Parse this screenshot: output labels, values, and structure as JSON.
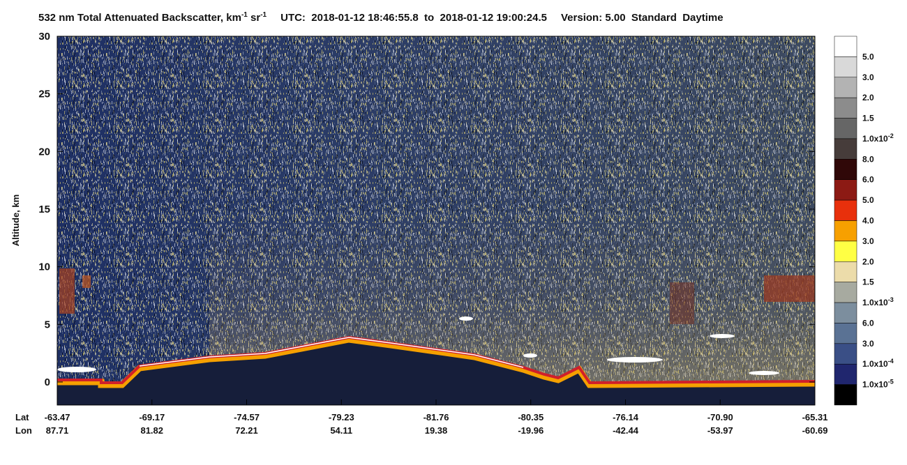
{
  "chart_data": {
    "type": "curtain",
    "title_parts": [
      "532 nm Total Attenuated Backscatter, km",
      "-1",
      " sr",
      "-1"
    ],
    "utc": "UTC:  2018-01-12 18:46:55.8  to  2018-01-12 19:00:24.5",
    "version": "Version: 5.00  Standard  Daytime",
    "ylabel": "Altitude, km",
    "ylim": [
      -2,
      30
    ],
    "yticks": [
      0,
      5,
      10,
      15,
      20,
      25,
      30
    ],
    "row_labels": [
      "Lat",
      "Lon"
    ],
    "lat": [
      "-63.47",
      "-69.17",
      "-74.57",
      "-79.23",
      "-81.76",
      "-80.35",
      "-76.14",
      "-70.90",
      "-65.31"
    ],
    "lon": [
      "87.71",
      "81.82",
      "72.21",
      "54.11",
      "19.38",
      "-19.96",
      "-42.44",
      "-53.97",
      "-60.69"
    ],
    "colorbar": {
      "colors": [
        "#ffffff",
        "#d9d9d9",
        "#b3b3b3",
        "#8c8c8c",
        "#666666",
        "#463c3a",
        "#300808",
        "#8c1a14",
        "#e8300c",
        "#f7a000",
        "#ffff44",
        "#ecdcaa",
        "#a7aaa0",
        "#7c8e9e",
        "#5a7294",
        "#3a4f86",
        "#20266e",
        "#000000"
      ],
      "labels": [
        {
          "label": "5.0"
        },
        {
          "label": "3.0"
        },
        {
          "label": "2.0"
        },
        {
          "label": "1.5"
        },
        {
          "label": "1.0x10",
          "exp": "-2"
        },
        {
          "label": "8.0"
        },
        {
          "label": "6.0"
        },
        {
          "label": "5.0"
        },
        {
          "label": "4.0"
        },
        {
          "label": "3.0"
        },
        {
          "label": "2.0"
        },
        {
          "label": "1.5"
        },
        {
          "label": "1.0x10",
          "exp": "-3"
        },
        {
          "label": "6.0"
        },
        {
          "label": "3.0"
        },
        {
          "label": "1.0x10",
          "exp": "-4"
        },
        {
          "label": "1.0x10",
          "exp": "-5"
        }
      ]
    }
  }
}
